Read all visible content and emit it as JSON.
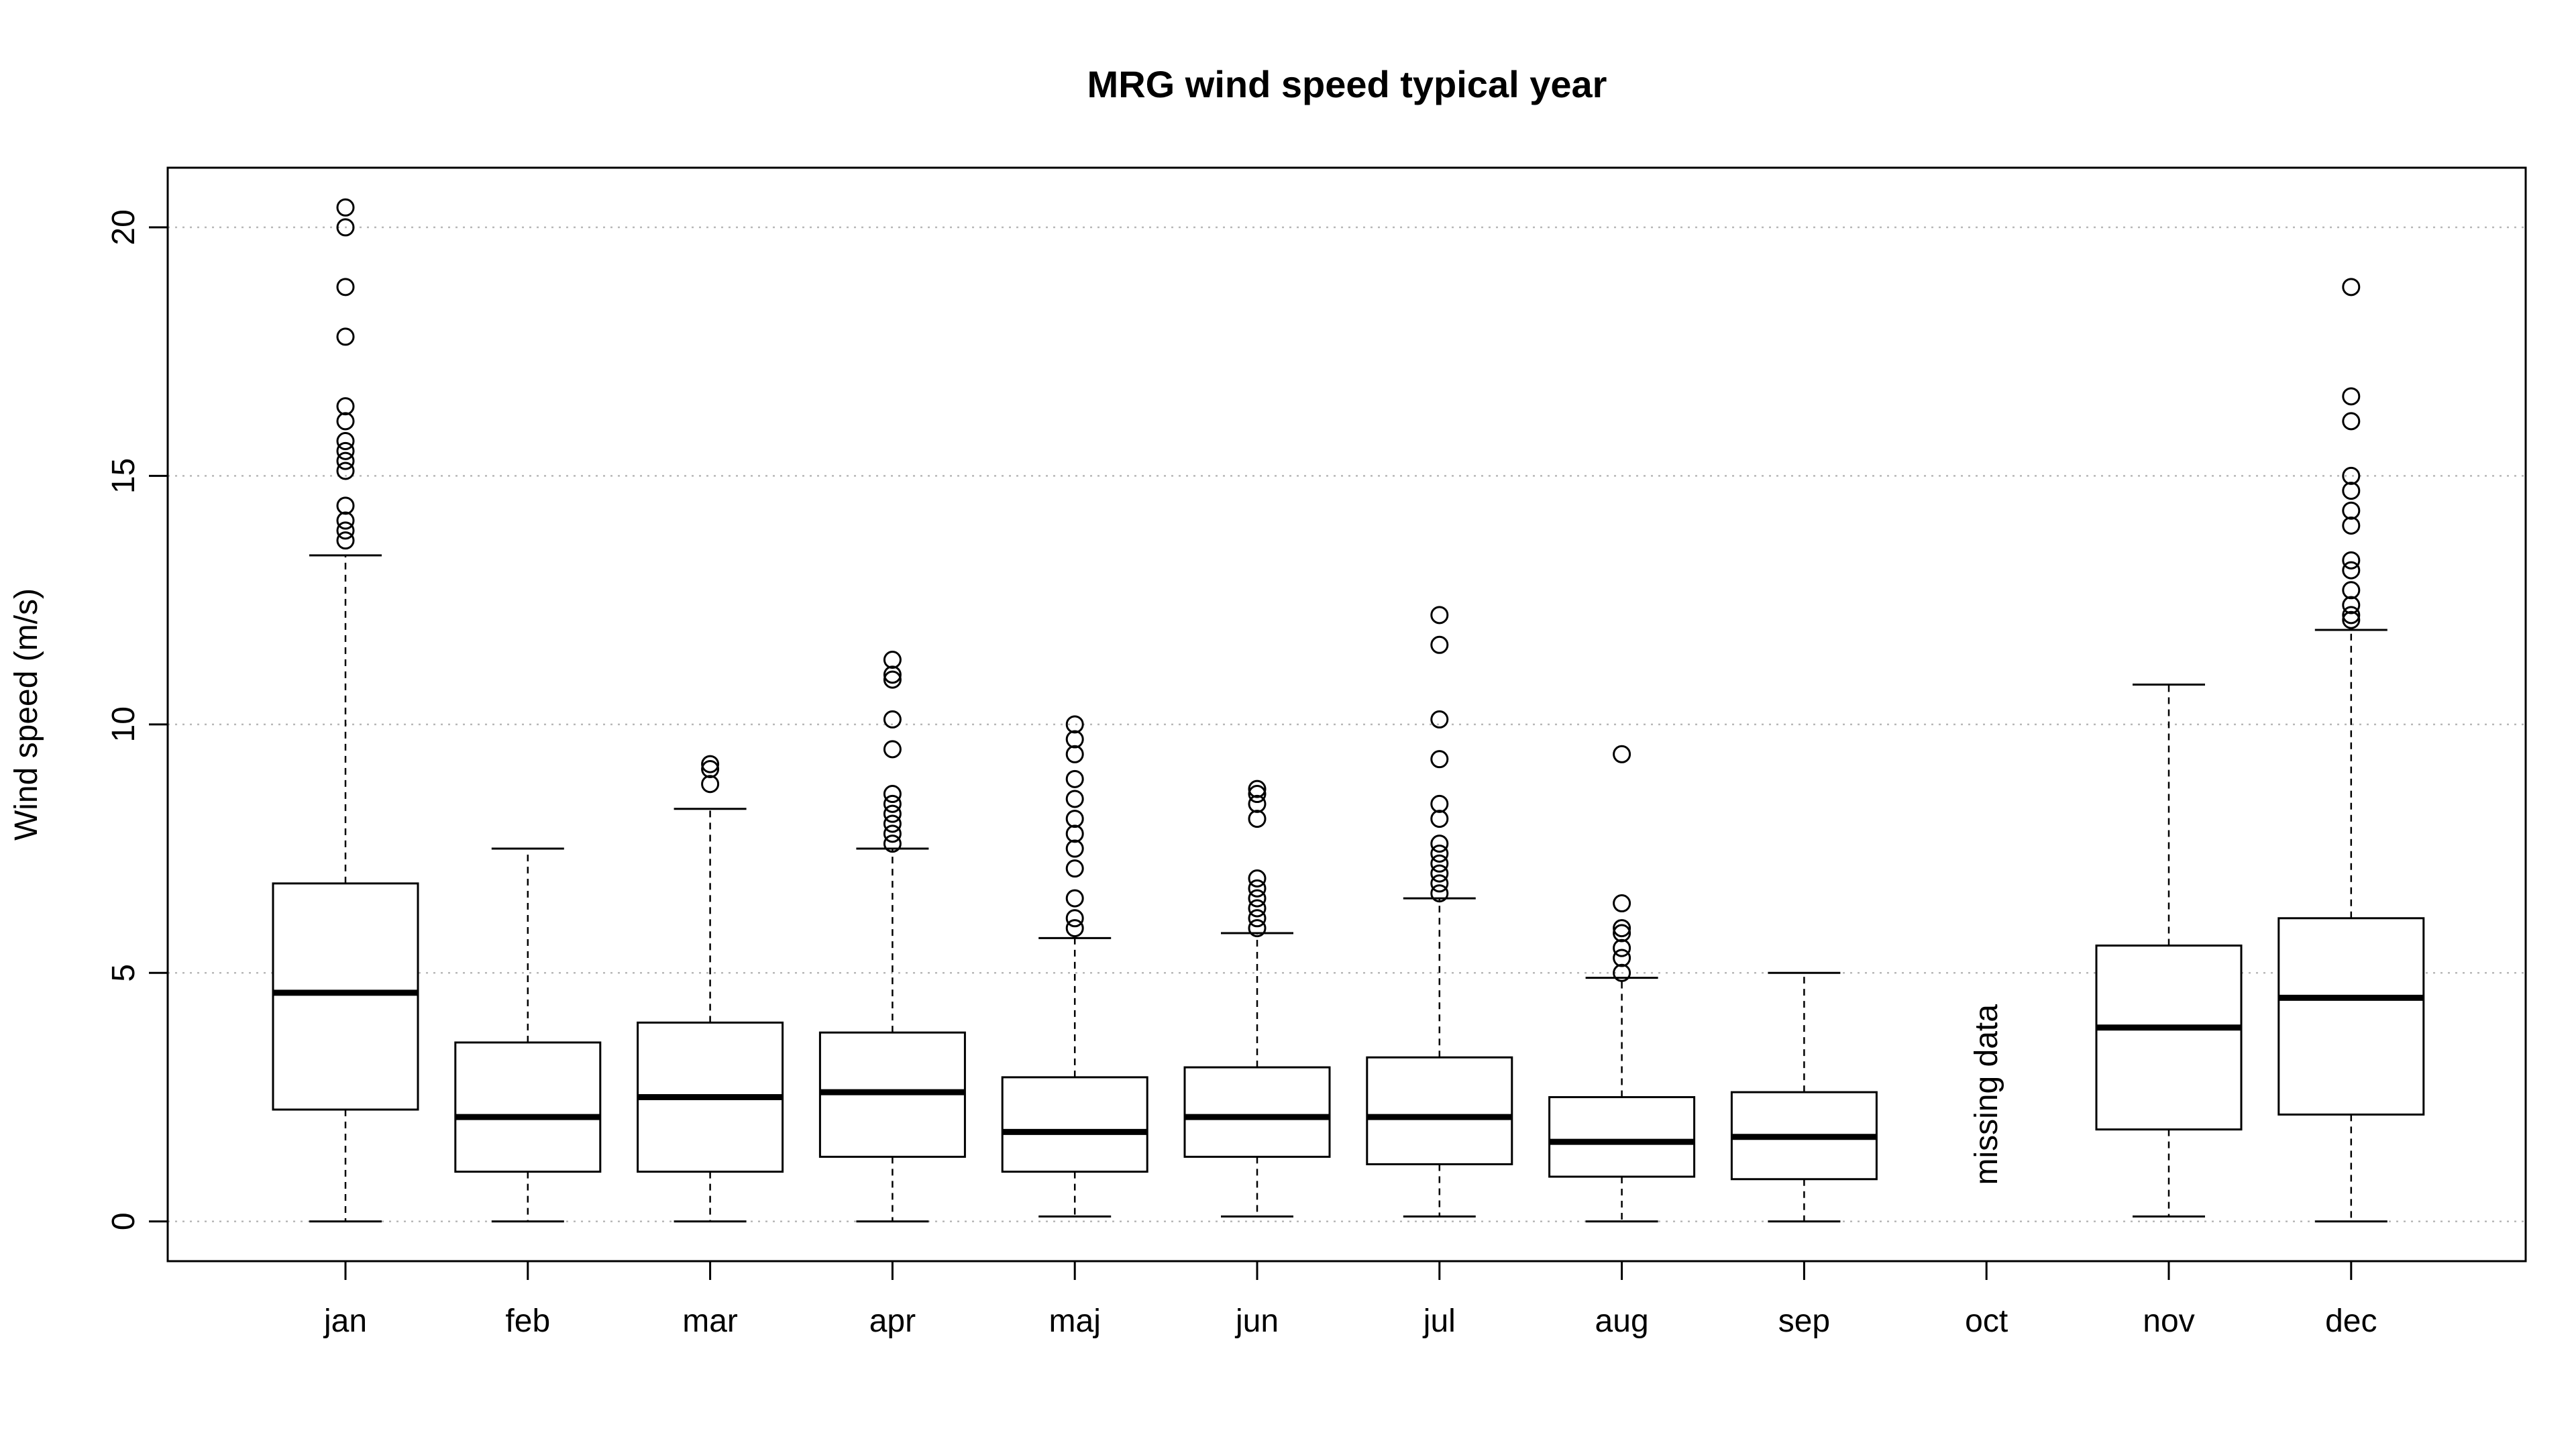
{
  "chart_data": {
    "type": "boxplot",
    "title": "MRG wind speed typical year",
    "xlabel": "",
    "ylabel": "Wind speed (m/s)",
    "ylim": [
      -0.8,
      21.2
    ],
    "yticks": [
      0,
      5,
      10,
      15,
      20
    ],
    "grid": "horizontal-dotted",
    "categories": [
      "jan",
      "feb",
      "mar",
      "apr",
      "maj",
      "jun",
      "jul",
      "aug",
      "sep",
      "oct",
      "nov",
      "dec"
    ],
    "boxes": [
      {
        "month": "jan",
        "min": 0,
        "q1": 2.25,
        "median": 4.6,
        "q3": 6.8,
        "max": 13.4,
        "outliers": [
          13.7,
          13.9,
          14.1,
          14.4,
          15.1,
          15.3,
          15.5,
          15.7,
          16.1,
          16.4,
          17.8,
          18.8,
          20.0,
          20.4
        ]
      },
      {
        "month": "feb",
        "min": 0,
        "q1": 1.0,
        "median": 2.1,
        "q3": 3.6,
        "max": 7.5,
        "outliers": []
      },
      {
        "month": "mar",
        "min": 0,
        "q1": 1.0,
        "median": 2.5,
        "q3": 4.0,
        "max": 8.3,
        "outliers": [
          8.8,
          9.1,
          9.2
        ]
      },
      {
        "month": "apr",
        "min": 0,
        "q1": 1.3,
        "median": 2.6,
        "q3": 3.8,
        "max": 7.5,
        "outliers": [
          7.6,
          7.8,
          8.0,
          8.2,
          8.4,
          8.6,
          9.5,
          10.1,
          10.9,
          11.0,
          11.3
        ]
      },
      {
        "month": "maj",
        "min": 0.1,
        "q1": 1.0,
        "median": 1.8,
        "q3": 2.9,
        "max": 5.7,
        "outliers": [
          5.9,
          6.1,
          6.5,
          7.1,
          7.5,
          7.8,
          8.1,
          8.5,
          8.9,
          9.4,
          9.7,
          10.0
        ]
      },
      {
        "month": "jun",
        "min": 0.1,
        "q1": 1.3,
        "median": 2.1,
        "q3": 3.1,
        "max": 5.8,
        "outliers": [
          5.9,
          6.1,
          6.3,
          6.5,
          6.7,
          6.9,
          8.1,
          8.4,
          8.6,
          8.7
        ]
      },
      {
        "month": "jul",
        "min": 0.1,
        "q1": 1.15,
        "median": 2.1,
        "q3": 3.3,
        "max": 6.5,
        "outliers": [
          6.6,
          6.8,
          7.0,
          7.2,
          7.4,
          7.6,
          8.1,
          8.4,
          9.3,
          10.1,
          11.6,
          12.2
        ]
      },
      {
        "month": "aug",
        "min": 0,
        "q1": 0.9,
        "median": 1.6,
        "q3": 2.5,
        "max": 4.9,
        "outliers": [
          5.0,
          5.3,
          5.5,
          5.8,
          5.9,
          6.4,
          9.4
        ]
      },
      {
        "month": "sep",
        "min": 0,
        "q1": 0.85,
        "median": 1.7,
        "q3": 2.6,
        "max": 5.0,
        "outliers": []
      },
      {
        "month": "oct",
        "missing": true
      },
      {
        "month": "nov",
        "min": 0.1,
        "q1": 1.85,
        "median": 3.9,
        "q3": 5.55,
        "max": 10.8,
        "outliers": []
      },
      {
        "month": "dec",
        "min": 0,
        "q1": 2.15,
        "median": 4.5,
        "q3": 6.1,
        "max": 11.9,
        "outliers": [
          12.1,
          12.2,
          12.4,
          12.7,
          13.1,
          13.3,
          14.0,
          14.3,
          14.7,
          15.0,
          16.1,
          16.6,
          18.8
        ]
      }
    ],
    "annotations": [
      {
        "category": "oct",
        "text": "missing data"
      }
    ]
  }
}
